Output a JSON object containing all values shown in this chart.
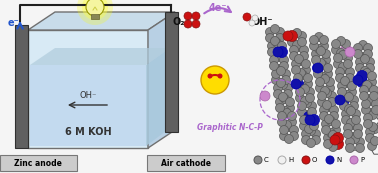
{
  "background_color": "#f5f5f5",
  "battery": {
    "front_color": "#d8eaf5",
    "front_dark": "#b0c8dc",
    "side_color": "#b8d0e4",
    "top_color": "#c8dcea",
    "wall_color": "#707070",
    "liquid_front": "#c0d8ee",
    "liquid_right": "#a8c8dc",
    "liquid_top": "#b0ccdc",
    "OH_label": "OH⁻",
    "KOH_label": "6 M KOH",
    "zinc_label": "Zinc anode",
    "air_label": "Air cathode",
    "e_label": "e⁻"
  },
  "wire_color": "#202020",
  "bulb_color": "#e8e870",
  "glow_color": "#ffff88",
  "reaction": {
    "O2_label": "O₂",
    "OH_label": "OH⁻",
    "arrow_label": "4e⁻",
    "graphitic_label": "Graphitic N-C-P",
    "purple": "#aa66cc"
  },
  "atoms": {
    "C_color": "#888888",
    "C_edge": "#555555",
    "H_color": "#f0f0f0",
    "H_edge": "#aaaaaa",
    "O_color": "#cc1111",
    "O_edge": "#881111",
    "N_color": "#1111aa",
    "N_edge": "#0000aa",
    "P_color": "#cc88cc",
    "P_edge": "#aa66aa"
  },
  "legend": {
    "items": [
      "C",
      "H",
      "O",
      "N",
      "P"
    ],
    "fcolors": [
      "#888888",
      "#f0f0f0",
      "#cc1111",
      "#1111aa",
      "#cc88cc"
    ],
    "ecolors": [
      "#555555",
      "#aaaaaa",
      "#881111",
      "#0000aa",
      "#aa66aa"
    ]
  }
}
